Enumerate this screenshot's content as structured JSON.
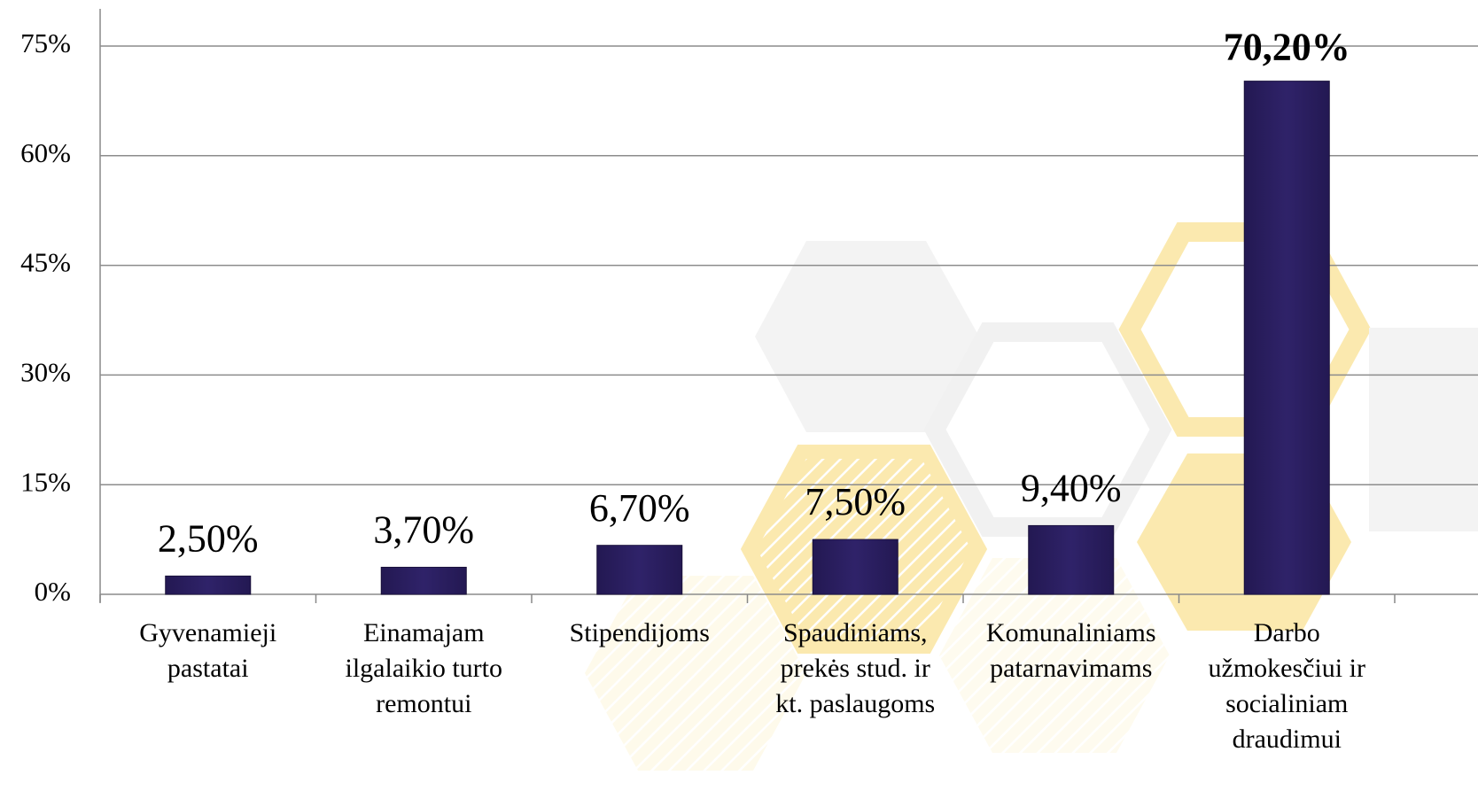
{
  "chart_data": {
    "type": "bar",
    "categories": [
      [
        "Gyvenamieji",
        "pastatai"
      ],
      [
        "Einamajam",
        "ilgalaikio turto",
        "remontui"
      ],
      [
        "Stipendijoms"
      ],
      [
        "Spaudiniams,",
        "prekės stud. ir",
        "kt. paslaugoms"
      ],
      [
        "Komunaliniams",
        "patarnavimams"
      ],
      [
        "Darbo",
        "užmokesčiui ir",
        "socialiniam",
        "draudimui"
      ]
    ],
    "values": [
      2.5,
      3.7,
      6.7,
      7.5,
      9.4,
      70.2
    ],
    "value_labels": [
      "2,50%",
      "3,70%",
      "6,70%",
      "7,50%",
      "9,40%",
      "70,20%"
    ],
    "color": "#2b1f62",
    "ylim": [
      0,
      75
    ],
    "yticks": [
      {
        "value": 0,
        "label": "0%"
      },
      {
        "value": 15,
        "label": "15%"
      },
      {
        "value": 30,
        "label": "30%"
      },
      {
        "value": 45,
        "label": "45%"
      },
      {
        "value": 60,
        "label": "60%"
      },
      {
        "value": 75,
        "label": "75%"
      }
    ],
    "grid": true
  }
}
